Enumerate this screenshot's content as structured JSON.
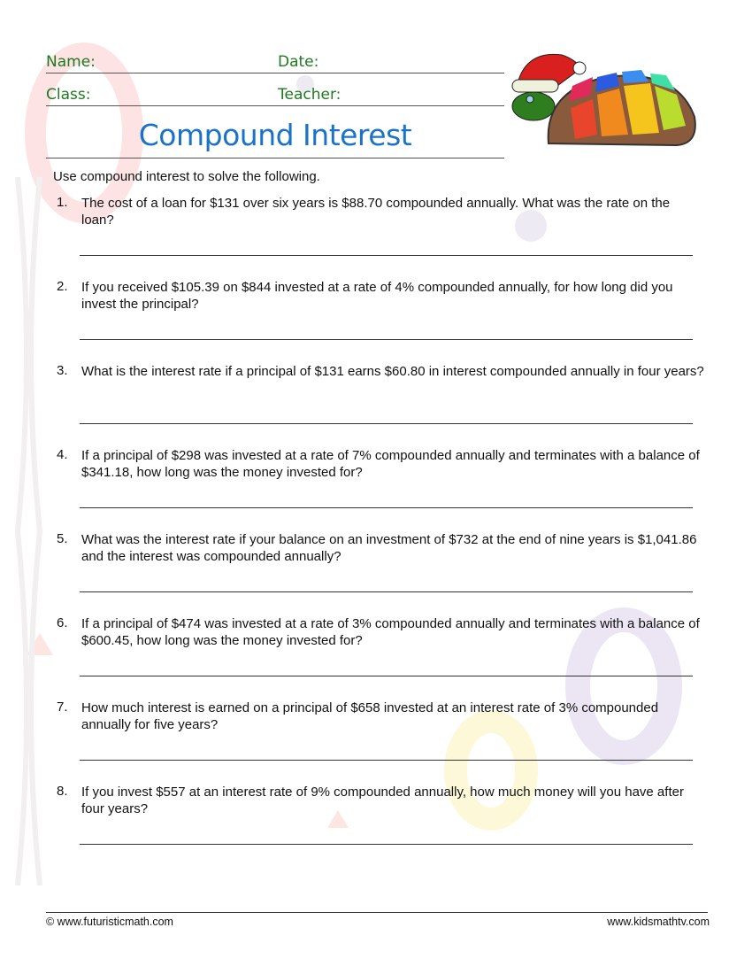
{
  "header": {
    "name_label": "Name:",
    "date_label": "Date:",
    "class_label": "Class:",
    "teacher_label": "Teacher:"
  },
  "title": "Compound Interest",
  "instructions": "Use compound interest to solve the following.",
  "questions": [
    {
      "number": "1.",
      "text": "The cost of a loan for $131 over six years is $88.70 compounded annually. What was the rate on the loan?"
    },
    {
      "number": "2.",
      "text": "If you received $105.39 on $844 invested at a rate of 4% compounded annually, for how long did you invest the principal?"
    },
    {
      "number": "3.",
      "text": "What is the interest rate if a principal of $131 earns $60.80 in interest compounded annually in four years?"
    },
    {
      "number": "4.",
      "text": "If a principal of $298 was invested at a rate of 7% compounded annually and terminates with a balance of $341.18, how long was the money invested for?"
    },
    {
      "number": "5.",
      "text": "What was the interest rate if your balance on an investment of $732 at the end of nine years is $1,041.86 and the interest was compounded annually?"
    },
    {
      "number": "6.",
      "text": "If a principal of $474 was invested at a rate of 3% compounded annually and terminates with a balance of $600.45, how long was the money invested for?"
    },
    {
      "number": "7.",
      "text": "How much interest is earned on a principal of $658 invested at an interest rate of 3% compounded annually for five years?"
    },
    {
      "number": "8.",
      "text": "If you invest $557 at an interest rate of 9% compounded annually, how much money will you have after four years?"
    }
  ],
  "footer": {
    "left": "© www.futuristicmath.com",
    "right": "www.kidsmathtv.com"
  },
  "colors": {
    "header_label": "#1e7a1e",
    "title": "#1a73c8"
  },
  "icons": [
    "turtle-santa-hat-illustration"
  ]
}
